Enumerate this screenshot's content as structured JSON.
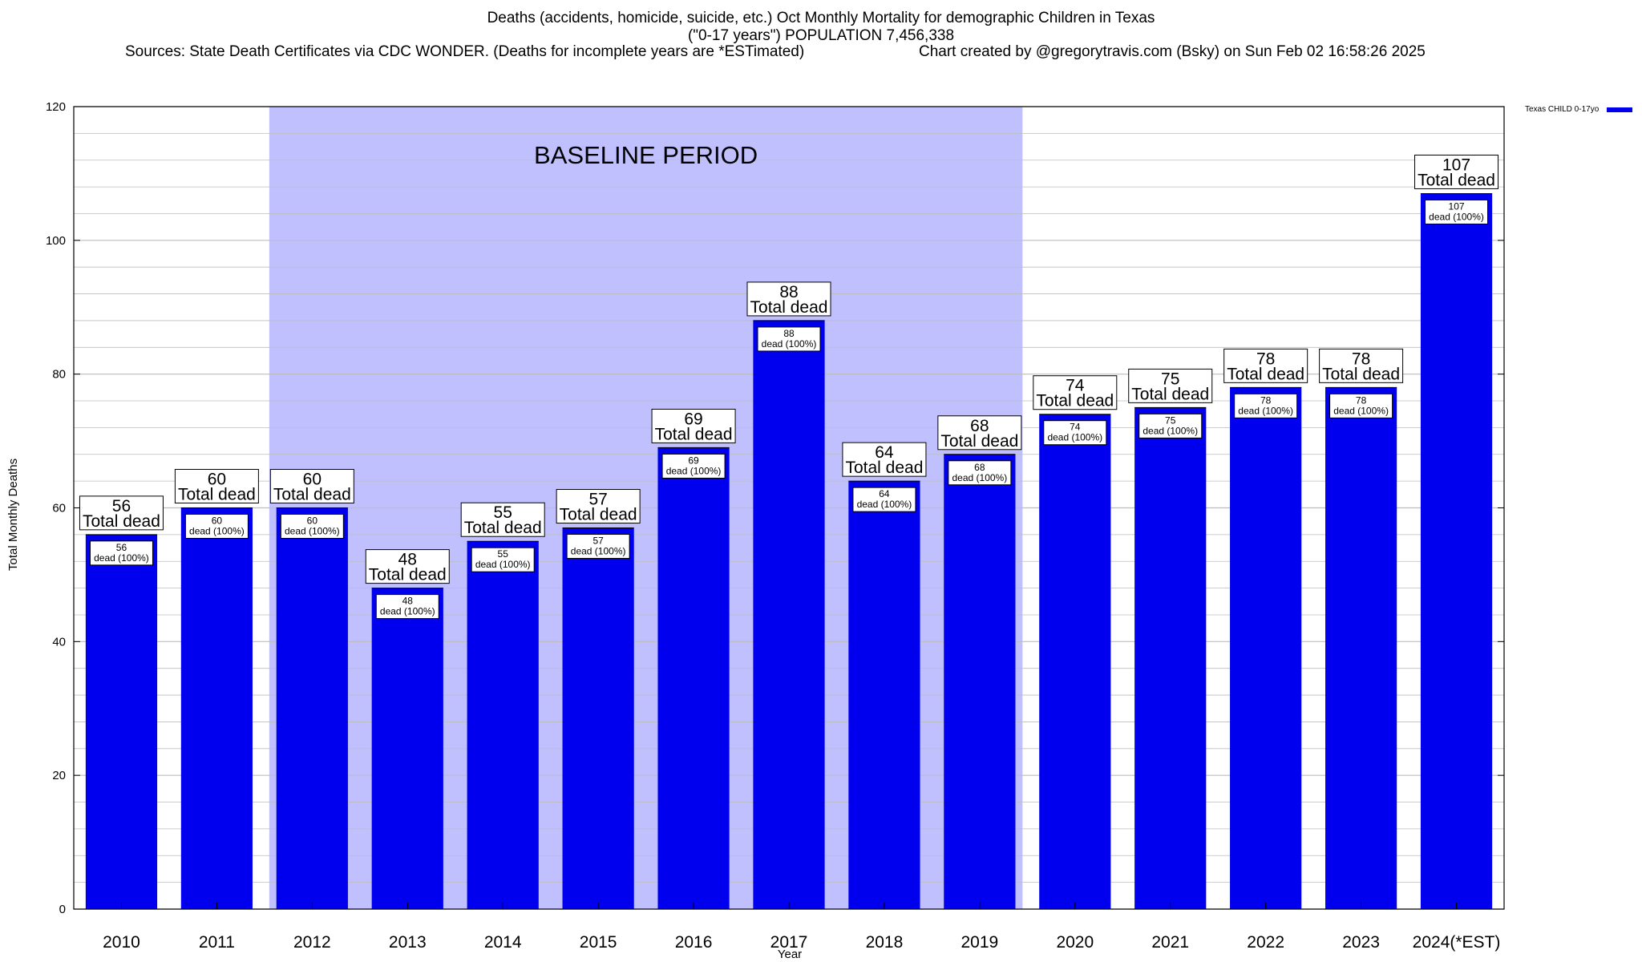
{
  "chart_data": {
    "type": "bar",
    "title": "Deaths (accidents, homicide, suicide, etc.) Oct Monthly Mortality for demographic Children in Texas",
    "subtitle": "(\"0-17 years\") POPULATION 7,456,338",
    "sources": "Sources: State Death Certificates via CDC WONDER. (Deaths for incomplete years are *ESTimated)",
    "credit": "Chart created by @gregorytravis.com (Bsky) on Sun Feb 02 16:58:26 2025",
    "xlabel": "Year",
    "ylabel": "Total Monthly Deaths",
    "ylim": [
      0,
      120
    ],
    "yticks": [
      0,
      20,
      40,
      60,
      80,
      100,
      120
    ],
    "categories": [
      "2010",
      "2011",
      "2012",
      "2013",
      "2014",
      "2015",
      "2016",
      "2017",
      "2018",
      "2019",
      "2020",
      "2021",
      "2022",
      "2023",
      "2024(*EST)"
    ],
    "series": [
      {
        "name": "Texas CHILD 0-17yo",
        "values": [
          56,
          60,
          60,
          48,
          55,
          57,
          69,
          88,
          64,
          68,
          74,
          75,
          78,
          78,
          107
        ]
      }
    ],
    "total_label_suffix": "Total dead",
    "inner_label_suffix": "dead (100%)",
    "baseline": {
      "label": "BASELINE PERIOD",
      "start": "2012",
      "end": "2019"
    },
    "grid": true,
    "legend_position": "top-right"
  },
  "colors": {
    "bar": "#0000ee",
    "baseline_fill": "#c0c0ff",
    "grid": "#bdbdbd"
  }
}
